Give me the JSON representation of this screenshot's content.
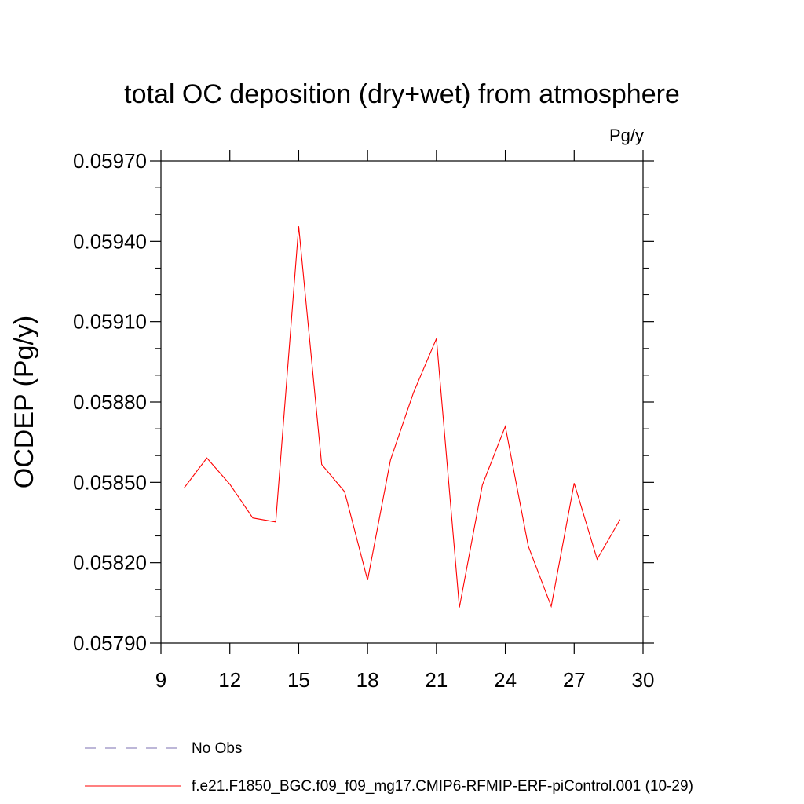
{
  "chart_data": {
    "type": "line",
    "title": "total OC deposition (dry+wet) from atmosphere",
    "units_label": "Pg/y",
    "ylabel": "OCDEP  (Pg/y)",
    "xlabel": "",
    "xlim": [
      9,
      30
    ],
    "ylim": [
      0.0579,
      0.0597
    ],
    "x_ticks": [
      9,
      12,
      15,
      18,
      21,
      24,
      27,
      30
    ],
    "x_tick_labels": [
      "9",
      "12",
      "15",
      "18",
      "21",
      "24",
      "27",
      "30"
    ],
    "x_minor_ticks": [],
    "y_ticks": [
      0.0579,
      0.0582,
      0.0585,
      0.0588,
      0.0591,
      0.0594,
      0.0597
    ],
    "y_tick_labels": [
      "0.05790",
      "0.05820",
      "0.05850",
      "0.05880",
      "0.05910",
      "0.05940",
      "0.05970"
    ],
    "y_minor_ticks": [
      0.058,
      0.0581,
      0.0583,
      0.0584,
      0.0586,
      0.0587,
      0.0589,
      0.059,
      0.0592,
      0.0593,
      0.0595,
      0.0596
    ],
    "grid": false,
    "legend_position": "bottom",
    "series": [
      {
        "name": "f.e21.F1850_BGC.f09_f09_mg17.CMIP6-RFMIP-ERF-piControl.001 (10-29)",
        "color": "#ff0000",
        "dash": "solid",
        "x": [
          10,
          11,
          12,
          13,
          14,
          15,
          16,
          17,
          18,
          19,
          20,
          21,
          22,
          23,
          24,
          25,
          26,
          27,
          28,
          29
        ],
        "y": [
          0.058478,
          0.058591,
          0.058493,
          0.058367,
          0.058352,
          0.059456,
          0.058567,
          0.058465,
          0.058135,
          0.058584,
          0.058835,
          0.059037,
          0.058033,
          0.05849,
          0.058709,
          0.058262,
          0.058037,
          0.058497,
          0.058213,
          0.058361
        ]
      }
    ],
    "legend": [
      {
        "label": "No Obs",
        "color": "#7b6fb0",
        "dash": "dashed"
      },
      {
        "label": "f.e21.F1850_BGC.f09_f09_mg17.CMIP6-RFMIP-ERF-piControl.001 (10-29)",
        "color": "#ff0000",
        "dash": "solid"
      }
    ]
  }
}
